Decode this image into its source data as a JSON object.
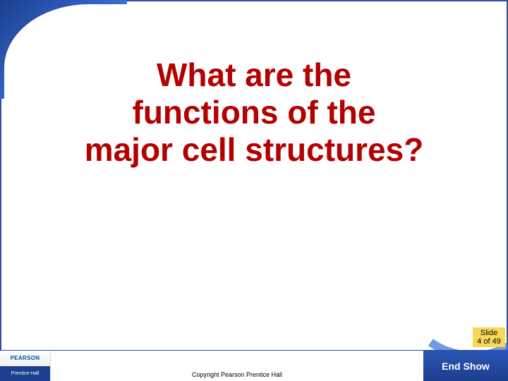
{
  "colors": {
    "title_color": "#b30000",
    "frame_color": "#2c4f9e",
    "accent_blue": "#3a6fd8",
    "counter_bg": "#f7d95a",
    "footer_button_bg": "#1c3f8f"
  },
  "title": {
    "line1": "What are the",
    "line2": "functions of the",
    "line3": "major cell structures?",
    "fontsize": 46,
    "font_weight": 700
  },
  "slide_counter": {
    "label": "Slide",
    "current": 4,
    "total": 49,
    "display": "4 of 49"
  },
  "footer": {
    "logo_top": "PEARSON",
    "logo_bottom": "Prentice Hall",
    "copyright": "Copyright Pearson Prentice Hall",
    "end_show": "End Show"
  }
}
